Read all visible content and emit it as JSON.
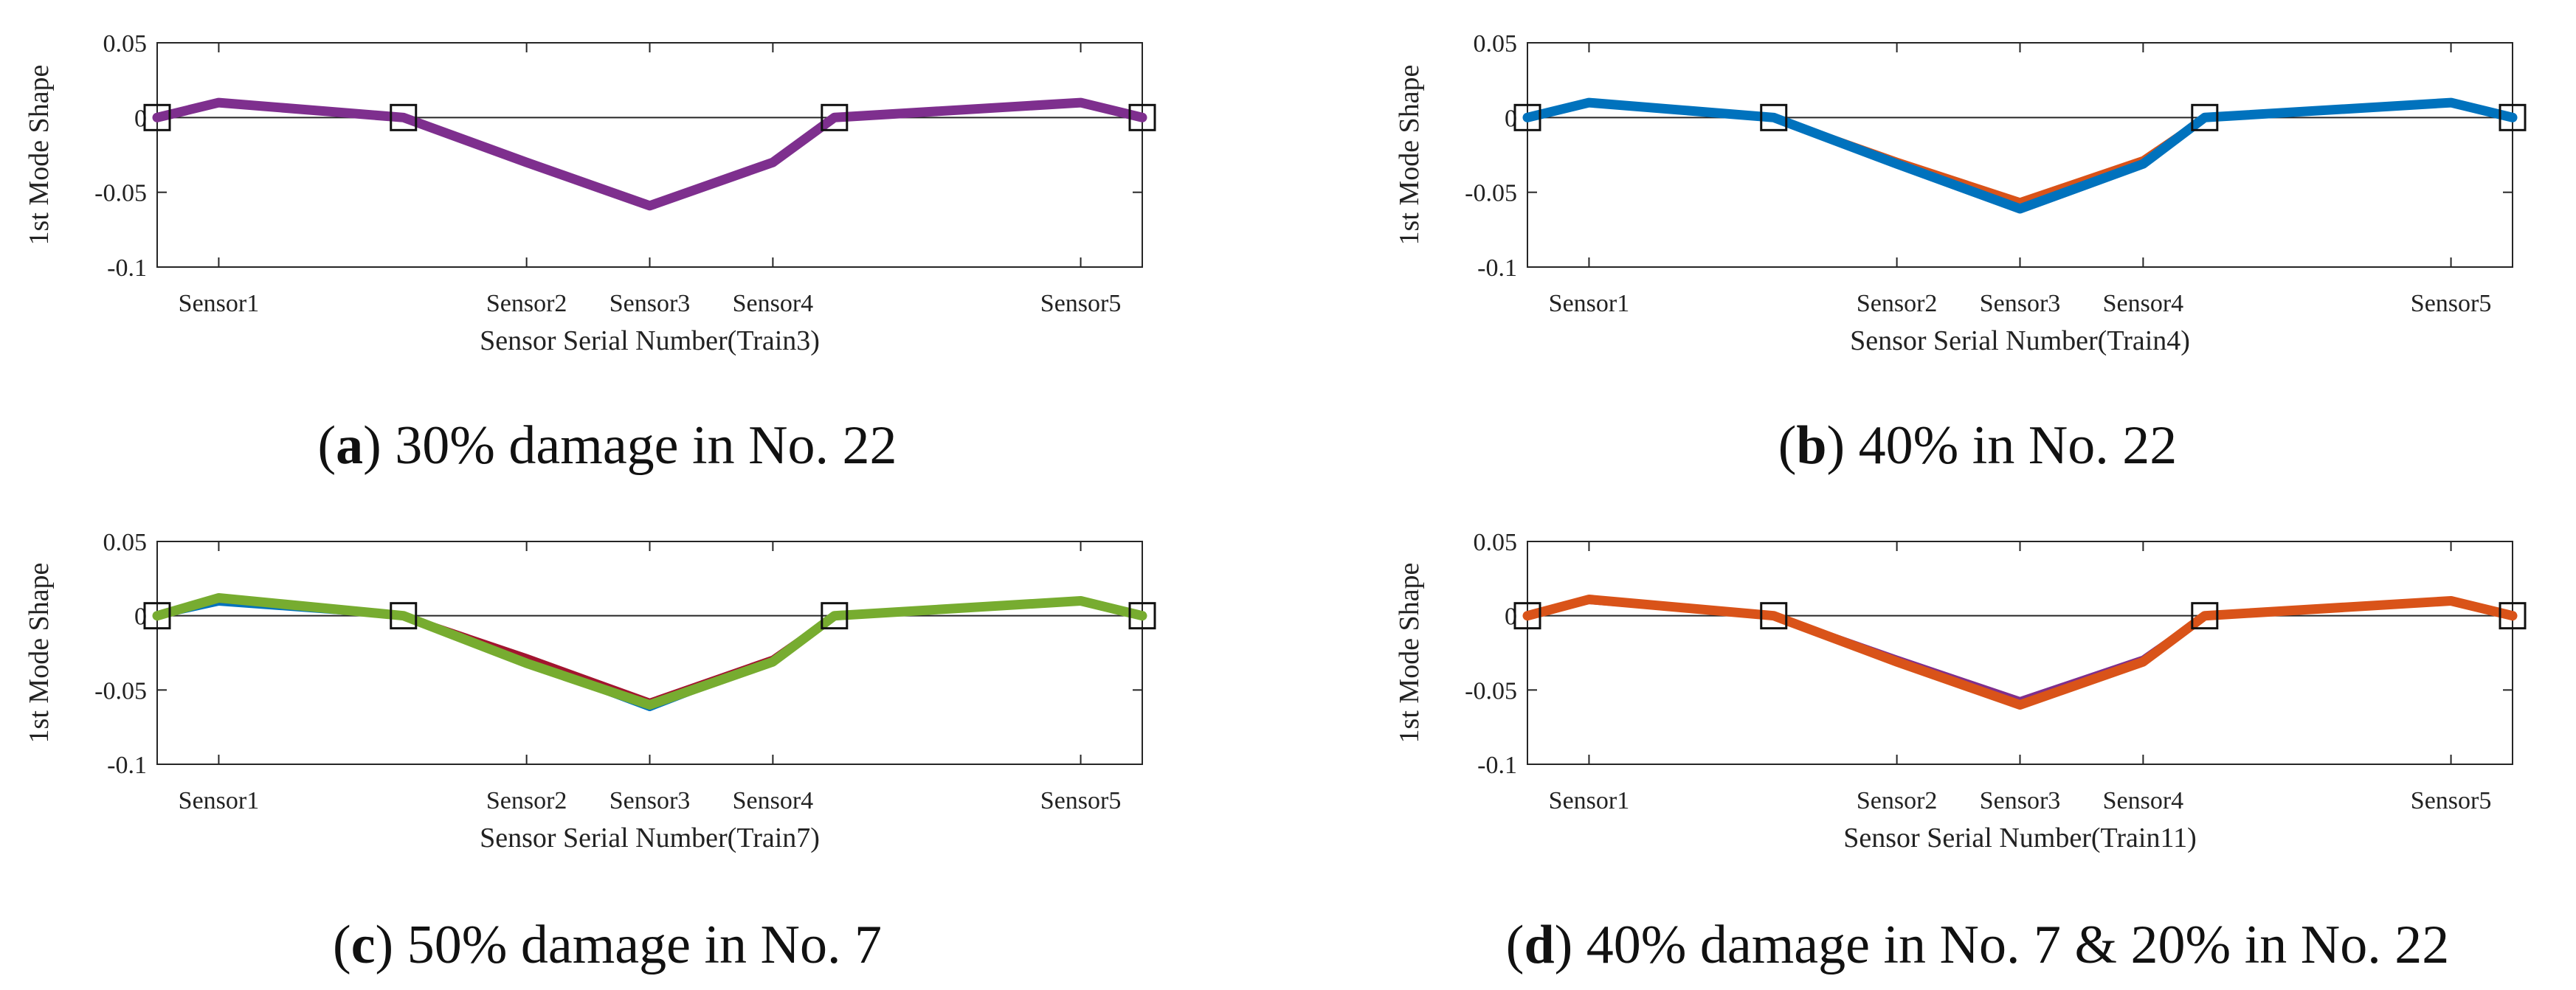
{
  "chart_data": [
    {
      "type": "line",
      "panel": "a",
      "caption": {
        "open": "(",
        "letter": "a",
        "close": ")",
        "text": " 30% damage in No. 22"
      },
      "xlabel": "Sensor Serial Number(Train3)",
      "ylabel": "1st Mode Shape",
      "xlim": [
        0,
        16
      ],
      "ylim": [
        -0.1,
        0.05
      ],
      "yticks": [
        0.05,
        0,
        -0.05,
        -0.1
      ],
      "ytick_labels": [
        "0.05",
        "0",
        "-0.05",
        "-0.1"
      ],
      "sensor_labels": [
        {
          "x": 1,
          "label": "Sensor1"
        },
        {
          "x": 6,
          "label": "Sensor2"
        },
        {
          "x": 8,
          "label": "Sensor3"
        },
        {
          "x": 10,
          "label": "Sensor4"
        },
        {
          "x": 15,
          "label": "Sensor5"
        }
      ],
      "support_markers_x": [
        0,
        4,
        11,
        16
      ],
      "series": [
        {
          "color": "#7e2f8e",
          "x": [
            0,
            1,
            4,
            6,
            8,
            10,
            11,
            15,
            16
          ],
          "values": [
            0,
            0.01,
            0,
            -0.03,
            -0.059,
            -0.03,
            0,
            0.01,
            0
          ]
        }
      ]
    },
    {
      "type": "line",
      "panel": "b",
      "caption": {
        "open": "(",
        "letter": "b",
        "close": ")",
        "text": " 40% in No. 22"
      },
      "xlabel": "Sensor Serial Number(Train4)",
      "ylabel": "1st Mode Shape",
      "xlim": [
        0,
        16
      ],
      "ylim": [
        -0.1,
        0.05
      ],
      "yticks": [
        0.05,
        0,
        -0.05,
        -0.1
      ],
      "ytick_labels": [
        "0.05",
        "0",
        "-0.05",
        "-0.1"
      ],
      "sensor_labels": [
        {
          "x": 1,
          "label": "Sensor1"
        },
        {
          "x": 6,
          "label": "Sensor2"
        },
        {
          "x": 8,
          "label": "Sensor3"
        },
        {
          "x": 10,
          "label": "Sensor4"
        },
        {
          "x": 15,
          "label": "Sensor5"
        }
      ],
      "support_markers_x": [
        0,
        4,
        11,
        16
      ],
      "series": [
        {
          "color": "#d95319",
          "x": [
            0,
            1,
            4,
            6,
            8,
            10,
            11,
            15,
            16
          ],
          "values": [
            0,
            0.01,
            0,
            -0.029,
            -0.056,
            -0.028,
            0,
            0.01,
            0
          ]
        },
        {
          "color": "#0072bd",
          "x": [
            0,
            1,
            4,
            6,
            8,
            10,
            11,
            15,
            16
          ],
          "values": [
            0,
            0.01,
            0,
            -0.031,
            -0.061,
            -0.031,
            0,
            0.01,
            0
          ]
        }
      ]
    },
    {
      "type": "line",
      "panel": "c",
      "caption": {
        "open": "(",
        "letter": "c",
        "close": ")",
        "text": " 50% damage in No. 7"
      },
      "xlabel": "Sensor Serial Number(Train7)",
      "ylabel": "1st Mode Shape",
      "xlim": [
        0,
        16
      ],
      "ylim": [
        -0.1,
        0.05
      ],
      "yticks": [
        0.05,
        0,
        -0.05,
        -0.1
      ],
      "ytick_labels": [
        "0.05",
        "0",
        "-0.05",
        "-0.1"
      ],
      "sensor_labels": [
        {
          "x": 1,
          "label": "Sensor1"
        },
        {
          "x": 6,
          "label": "Sensor2"
        },
        {
          "x": 8,
          "label": "Sensor3"
        },
        {
          "x": 10,
          "label": "Sensor4"
        },
        {
          "x": 15,
          "label": "Sensor5"
        }
      ],
      "support_markers_x": [
        0,
        4,
        11,
        16
      ],
      "series": [
        {
          "color": "#0072bd",
          "x": [
            0,
            1,
            4,
            6,
            8,
            10,
            11,
            15,
            16
          ],
          "values": [
            0,
            0.009,
            0,
            -0.031,
            -0.062,
            -0.03,
            0,
            0.01,
            0
          ]
        },
        {
          "color": "#a2142f",
          "x": [
            0,
            1,
            4,
            6,
            8,
            10,
            11,
            15,
            16
          ],
          "values": [
            0,
            0.011,
            0,
            -0.028,
            -0.058,
            -0.029,
            0,
            0.01,
            0
          ]
        },
        {
          "color": "#77ac30",
          "x": [
            0,
            1,
            4,
            6,
            8,
            10,
            11,
            15,
            16
          ],
          "values": [
            0,
            0.012,
            0,
            -0.032,
            -0.06,
            -0.031,
            0,
            0.01,
            0
          ]
        }
      ]
    },
    {
      "type": "line",
      "panel": "d",
      "caption": {
        "open": "(",
        "letter": "d",
        "close": ")",
        "text": " 40% damage in No. 7 & 20% in No. 22"
      },
      "xlabel": "Sensor Serial Number(Train11)",
      "ylabel": "1st Mode Shape",
      "xlim": [
        0,
        16
      ],
      "ylim": [
        -0.1,
        0.05
      ],
      "yticks": [
        0.05,
        0,
        -0.05,
        -0.1
      ],
      "ytick_labels": [
        "0.05",
        "0",
        "-0.05",
        "-0.1"
      ],
      "sensor_labels": [
        {
          "x": 1,
          "label": "Sensor1"
        },
        {
          "x": 6,
          "label": "Sensor2"
        },
        {
          "x": 8,
          "label": "Sensor3"
        },
        {
          "x": 10,
          "label": "Sensor4"
        },
        {
          "x": 15,
          "label": "Sensor5"
        }
      ],
      "support_markers_x": [
        0,
        4,
        11,
        16
      ],
      "series": [
        {
          "color": "#7e2f8e",
          "x": [
            0,
            1,
            4,
            6,
            8,
            10,
            11,
            15,
            16
          ],
          "values": [
            0,
            0.01,
            0,
            -0.029,
            -0.057,
            -0.029,
            0,
            0.01,
            0
          ]
        },
        {
          "color": "#d95319",
          "x": [
            0,
            1,
            4,
            6,
            8,
            10,
            11,
            15,
            16
          ],
          "values": [
            0,
            0.011,
            0,
            -0.031,
            -0.06,
            -0.031,
            0,
            0.01,
            0
          ]
        }
      ]
    }
  ]
}
